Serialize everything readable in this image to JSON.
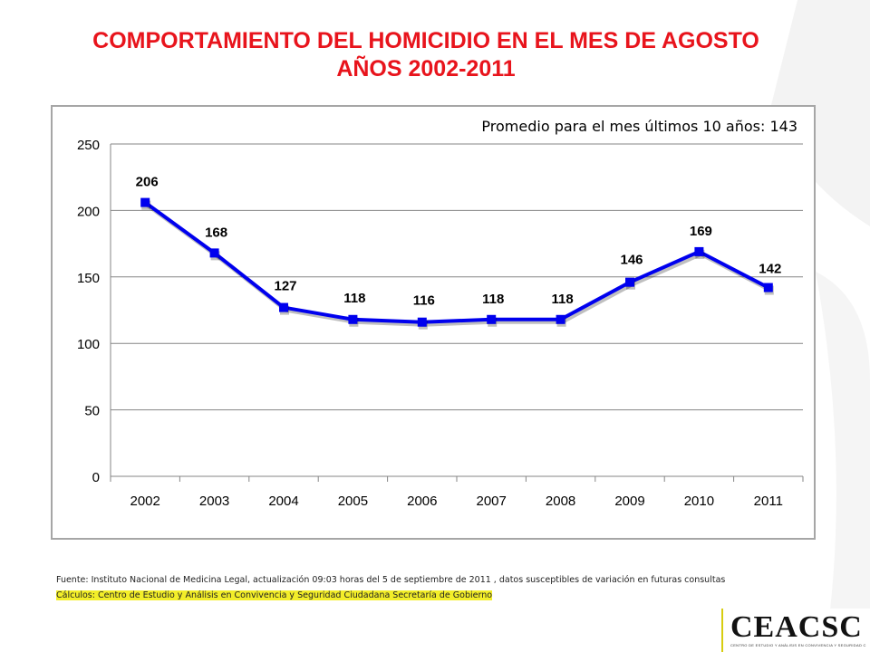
{
  "slide": {
    "title_line1": "COMPORTAMIENTO DEL HOMICIDIO EN EL MES DE AGOSTO",
    "title_line2": "AÑOS 2002-2011",
    "annotation": "Promedio  para el mes últimos 10 años: 143",
    "source_line1": "Fuente: Instituto  Nacional de Medicina Legal, actualización  09:03  horas del  5 de  septiembre de 2011 , datos susceptibles de variación en futuras consultas",
    "source_line2": "Cálculos:  Centro de Estudio  y Análisis en Convivencia y Seguridad Ciudadana Secretaría de Gobierno",
    "logo_text": "CEACSC",
    "logo_subtitle": "CENTRO DE ESTUDIO Y ANÁLISIS EN CONVIVENCIA Y SEGURIDAD CIUDADANA",
    "colors": {
      "title": "#e8141c",
      "series": "#0000ee",
      "logo_accent": "#d7cd10",
      "highlight": "#f3ee29"
    }
  },
  "chart_data": {
    "type": "line",
    "categories": [
      "2002",
      "2003",
      "2004",
      "2005",
      "2006",
      "2007",
      "2008",
      "2009",
      "2010",
      "2011"
    ],
    "series": [
      {
        "values": [
          206,
          168,
          127,
          118,
          116,
          118,
          118,
          146,
          169,
          142
        ]
      }
    ],
    "data_labels": [
      "206",
      "168",
      "127",
      "118",
      "116",
      "118",
      "118",
      "146",
      "169",
      "142"
    ],
    "ylim": [
      0,
      250
    ],
    "yticks": [
      0,
      50,
      100,
      150,
      200,
      250
    ],
    "grid": "horizontal",
    "marker": "square",
    "legend": "none"
  }
}
